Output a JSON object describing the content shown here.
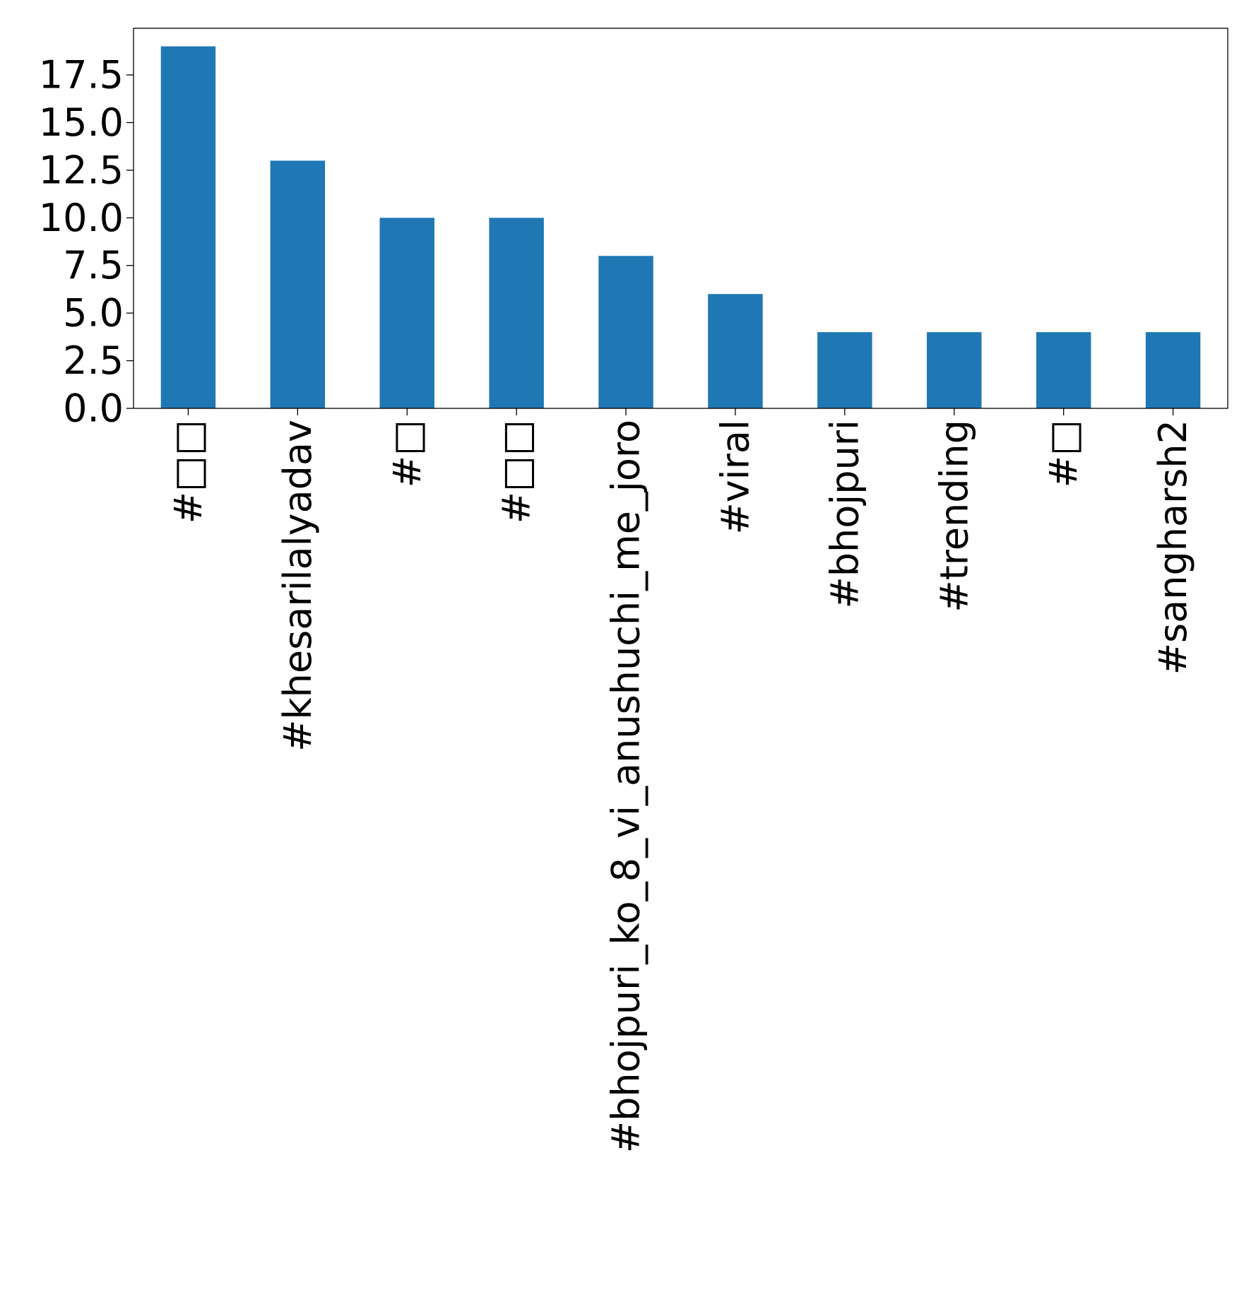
{
  "chart_data": {
    "type": "bar",
    "title": "",
    "xlabel": "",
    "ylabel": "",
    "categories": [
      "#□□",
      "#khesarilalyadav",
      "#□",
      "#□□",
      "#bhojpuri_ko_8_vi_anushuchi_me_joro",
      "#viral",
      "#bhojpuri",
      "#trending",
      "#□",
      "#sangharsh2"
    ],
    "values": [
      19,
      13,
      10,
      10,
      8,
      6,
      4,
      4,
      4,
      4
    ],
    "ylim": [
      0,
      19.95
    ],
    "yticks": [
      "0.0",
      "2.5",
      "5.0",
      "7.5",
      "10.0",
      "12.5",
      "15.0",
      "17.5"
    ],
    "ytick_values": [
      0,
      2.5,
      5,
      7.5,
      10,
      12.5,
      15,
      17.5
    ],
    "grid": false,
    "legend": "none",
    "bar_color": "#1f77b4"
  }
}
